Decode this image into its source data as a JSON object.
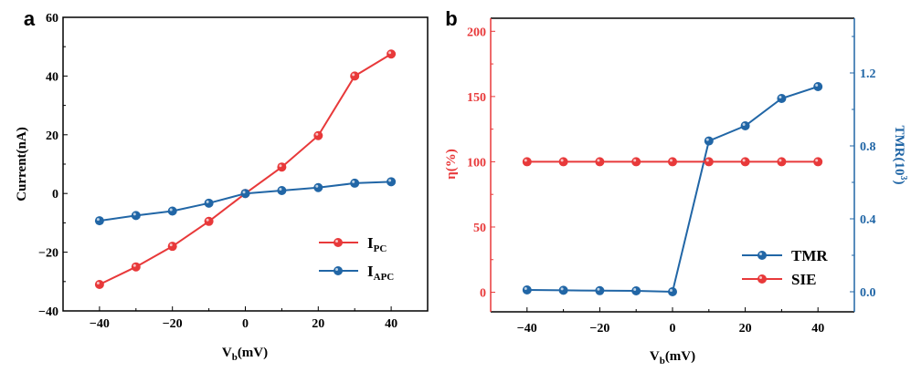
{
  "colors": {
    "red": "#e8393a",
    "blue": "#2166a6",
    "axis": "#000000"
  },
  "chart_data": [
    {
      "panel_label": "a",
      "type": "line",
      "xlabel": "Vb(mV)",
      "xlabel_main": "V",
      "xlabel_sub": "b",
      "xlabel_unit": "(mV)",
      "ylabel": "Current(nA)",
      "xlim": [
        -50,
        50
      ],
      "ylim": [
        -40,
        60
      ],
      "xticks": [
        -40,
        -20,
        0,
        20,
        40
      ],
      "yticks": [
        -40,
        -20,
        0,
        20,
        40,
        60
      ],
      "x": [
        -40,
        -30,
        -20,
        -10,
        0,
        10,
        20,
        30,
        40
      ],
      "legend_position": "bottom-right",
      "series": [
        {
          "name": "IPC",
          "name_main": "I",
          "name_sub": "PC",
          "color": "#e8393a",
          "values": [
            -31,
            -25,
            -18,
            -9.5,
            0,
            9,
            19.7,
            40,
            47.5
          ]
        },
        {
          "name": "IAPC",
          "name_main": "I",
          "name_sub": "APC",
          "color": "#2166a6",
          "values": [
            -9.3,
            -7.5,
            -6,
            -3.3,
            0,
            1,
            2,
            3.5,
            4
          ]
        }
      ]
    },
    {
      "panel_label": "b",
      "type": "line",
      "xlabel": "Vb(mV)",
      "xlabel_main": "V",
      "xlabel_sub": "b",
      "xlabel_unit": "(mV)",
      "ylabel_left": "η(%)",
      "ylabel_right": "TMR(10³)",
      "ylabel_right_main": "TMR(10",
      "ylabel_right_sup": "3",
      "ylabel_right_end": ")",
      "xlim": [
        -50,
        50
      ],
      "ylim_left": [
        -15,
        210
      ],
      "ylim_right": [
        -0.11,
        1.5
      ],
      "xticks": [
        -40,
        -20,
        0,
        20,
        40
      ],
      "yticks_left": [
        0,
        50,
        100,
        150,
        200
      ],
      "yticks_right": [
        "0.0",
        "0.4",
        "0.8",
        "1.2"
      ],
      "x": [
        -40,
        -30,
        -20,
        -10,
        0,
        10,
        20,
        30,
        40
      ],
      "legend_position": "bottom-right",
      "series": [
        {
          "name": "TMR",
          "axis": "right",
          "color": "#2166a6",
          "values": [
            0.01,
            0.008,
            0.006,
            0.005,
            0,
            0.827,
            0.91,
            1.06,
            1.125
          ]
        },
        {
          "name": "SIE",
          "axis": "left",
          "color": "#e8393a",
          "values": [
            100,
            100,
            100,
            100,
            100,
            100,
            100,
            100,
            100
          ]
        }
      ]
    }
  ]
}
